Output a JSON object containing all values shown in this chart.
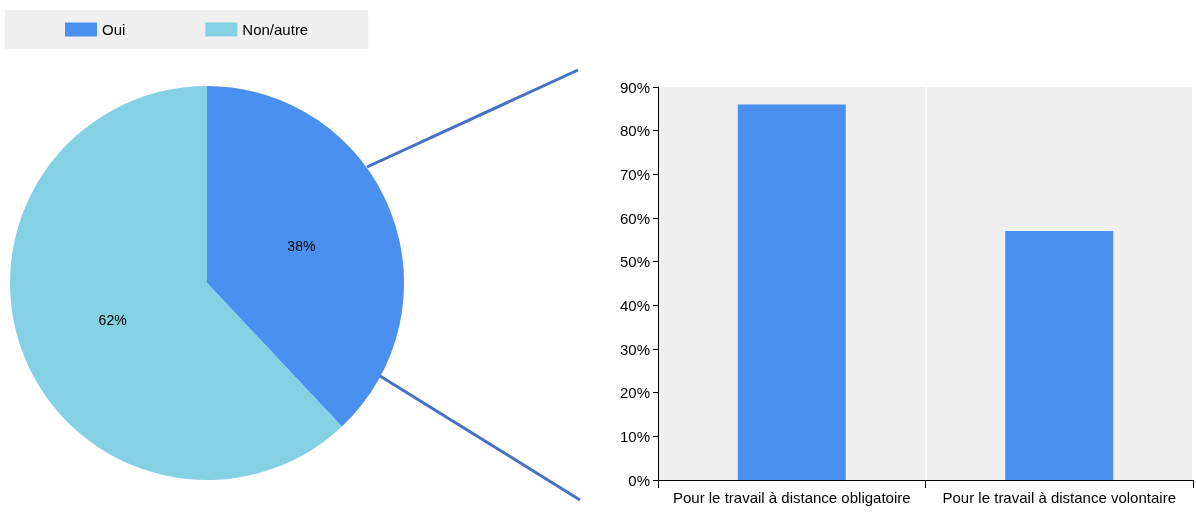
{
  "chart_data": [
    {
      "type": "pie",
      "categories": [
        "Oui",
        "Non/autre"
      ],
      "values": [
        38,
        62
      ],
      "colors": [
        "#4a90f0",
        "#83d1e3"
      ],
      "value_labels": [
        "38%",
        "62%"
      ],
      "legend": "top left"
    },
    {
      "type": "bar",
      "categories": [
        "Pour le travail à distance obligatoire",
        "Pour le travail à distance volontaire"
      ],
      "values": [
        86,
        57
      ],
      "color": "#4a90f0",
      "ylim": [
        0,
        90
      ],
      "yticks": [
        {
          "value": 0,
          "label": "0%"
        },
        {
          "value": 10,
          "label": "10%"
        },
        {
          "value": 20,
          "label": "20%"
        },
        {
          "value": 30,
          "label": "30%"
        },
        {
          "value": 40,
          "label": "40%"
        },
        {
          "value": 50,
          "label": "50%"
        },
        {
          "value": 60,
          "label": "60%"
        },
        {
          "value": 70,
          "label": "70%"
        },
        {
          "value": 80,
          "label": "80%"
        },
        {
          "value": 90,
          "label": "90%"
        }
      ],
      "grid": "x"
    }
  ]
}
